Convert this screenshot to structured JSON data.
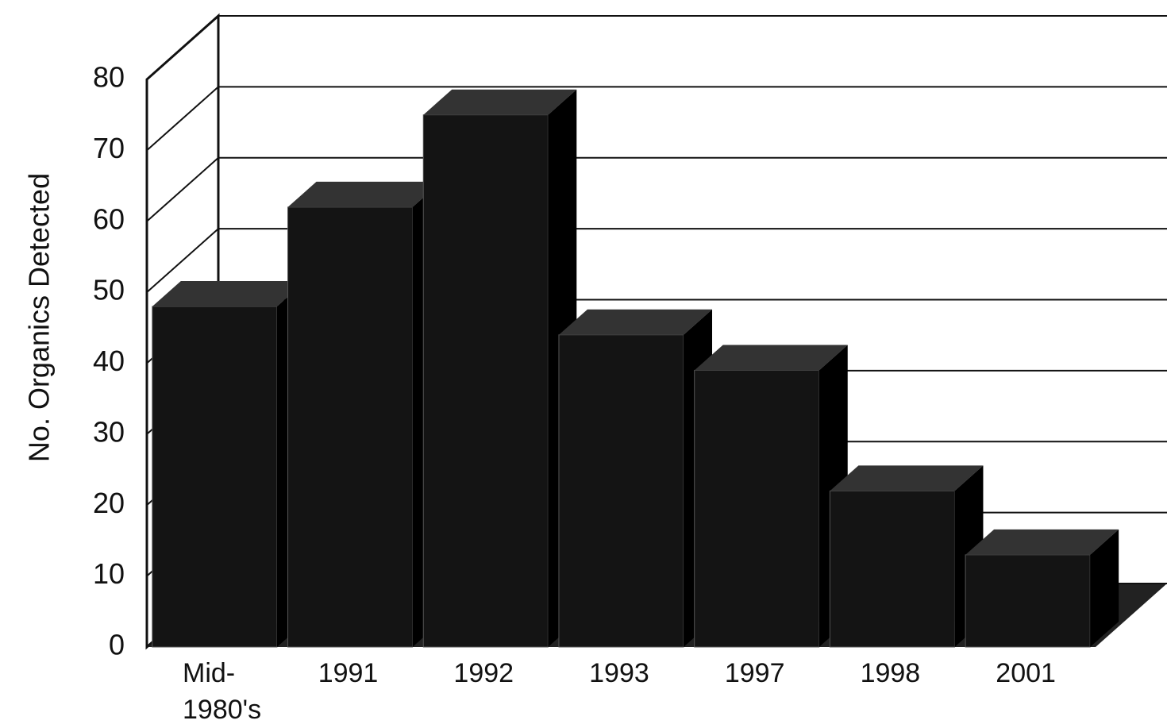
{
  "chart_data": {
    "type": "bar3d",
    "y_axis_label": "No. Organics Detected",
    "categories": [
      "Mid- 1980's",
      "1991",
      "1992",
      "1993",
      "1997",
      "1998",
      "2001"
    ],
    "values": [
      48,
      62,
      75,
      44,
      39,
      22,
      13
    ],
    "color": "#141414",
    "ylim": [
      0,
      80
    ],
    "yticks": [
      0,
      10,
      20,
      30,
      40,
      50,
      60,
      70,
      80
    ],
    "grid": true
  }
}
